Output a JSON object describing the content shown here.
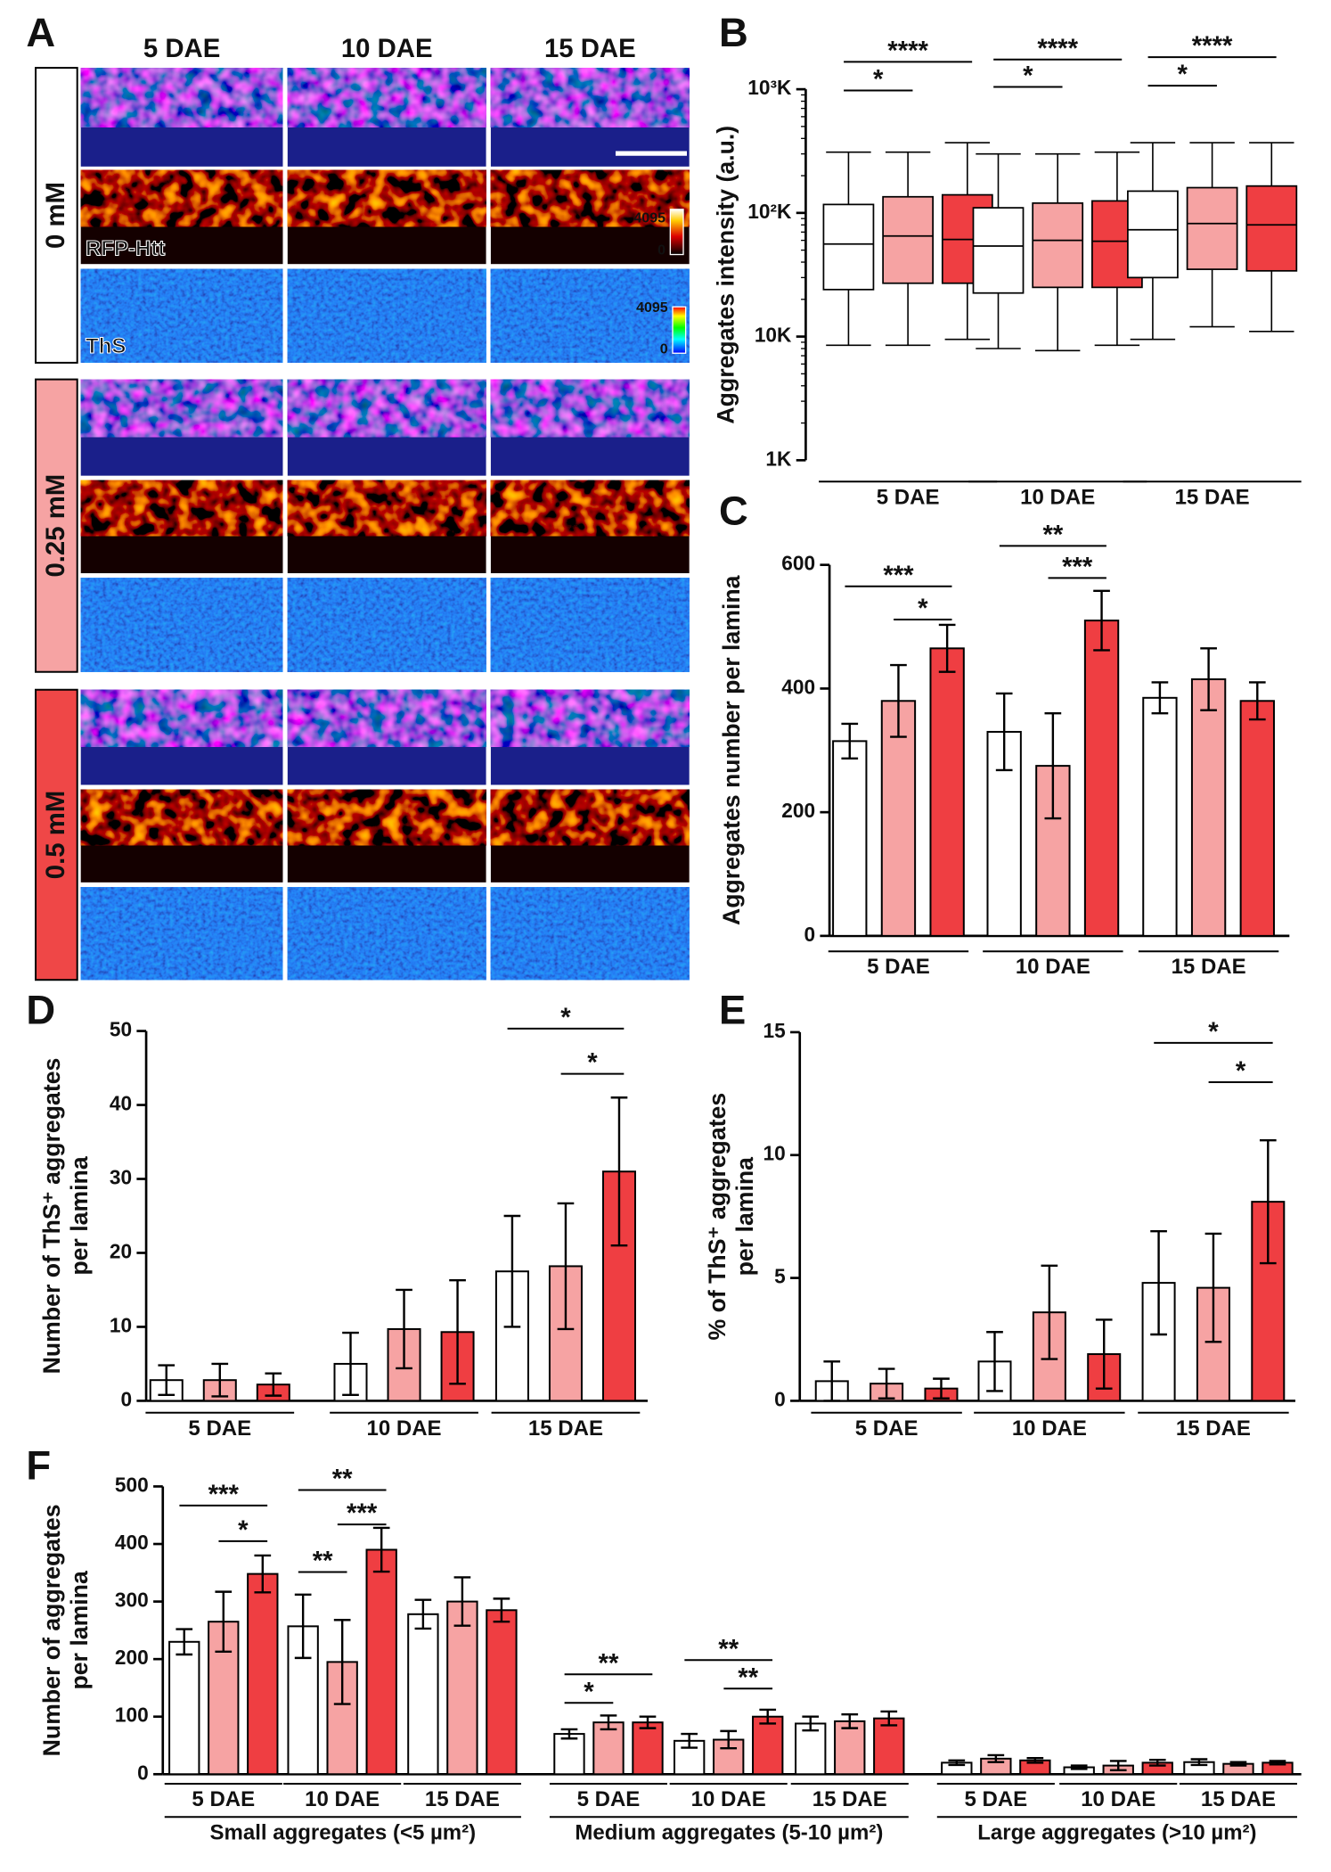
{
  "panel_a": {
    "letter": "A",
    "columns": [
      "5 DAE",
      "10 DAE",
      "15 DAE"
    ],
    "rows": [
      "0 mM",
      "0.25 mM",
      "0.5 mM"
    ],
    "channels": [
      "RFP-Htt",
      "ThS"
    ],
    "colorbar_max": "4095",
    "colorbar_min": "0"
  },
  "chart_data": [
    {
      "type": "box",
      "panel": "B",
      "ylabel": [
        "Aggregates intensity (a.u.)"
      ],
      "categories": [
        "5 DAE",
        "10 DAE",
        "15 DAE"
      ],
      "log_scale": true,
      "ylim": [
        1,
        1000
      ],
      "yticks": [
        {
          "value": 1,
          "label": "1K"
        },
        {
          "value": 10,
          "label": "10K"
        },
        {
          "value": 100,
          "label": "10²K"
        },
        {
          "value": 1000,
          "label": "10³K"
        }
      ],
      "series": [
        {
          "color": "#ffffff",
          "whislo": [
            8.5,
            8,
            9.5
          ],
          "q1": [
            24,
            22.5,
            30
          ],
          "median": [
            56,
            54,
            73
          ],
          "q3": [
            117,
            110,
            150
          ],
          "whishi": [
            310,
            300,
            370
          ]
        },
        {
          "color": "#f6a3a3",
          "whislo": [
            8.5,
            7.7,
            12
          ],
          "q1": [
            27,
            25,
            35
          ],
          "median": [
            65,
            60,
            82
          ],
          "q3": [
            135,
            120,
            160
          ],
          "whishi": [
            310,
            300,
            370
          ]
        },
        {
          "color": "#ef3e42",
          "whislo": [
            9.5,
            8.5,
            11
          ],
          "q1": [
            27,
            25,
            34
          ],
          "median": [
            61,
            59,
            80
          ],
          "q3": [
            140,
            125,
            165
          ],
          "whishi": [
            370,
            310,
            370
          ]
        }
      ],
      "annotations": [
        "****",
        "*",
        "****",
        "*",
        "****",
        "*"
      ]
    },
    {
      "type": "bar",
      "panel": "C",
      "ylabel": [
        "Aggregates number per lamina"
      ],
      "categories": [
        "5 DAE",
        "10 DAE",
        "15 DAE"
      ],
      "ylim": [
        0,
        600
      ],
      "yticks": [
        0,
        200,
        400,
        600
      ],
      "series": [
        {
          "color": "#ffffff",
          "values": [
            315,
            330,
            385
          ],
          "errors": [
            28,
            62,
            25
          ]
        },
        {
          "color": "#f6a3a3",
          "values": [
            380,
            275,
            415
          ],
          "errors": [
            58,
            85,
            50
          ]
        },
        {
          "color": "#ef3e42",
          "values": [
            465,
            510,
            380
          ],
          "errors": [
            38,
            48,
            30
          ]
        }
      ],
      "annotations": [
        "***",
        "*",
        "**",
        "***"
      ]
    },
    {
      "type": "bar",
      "panel": "D",
      "ylabel": [
        "Number of ThS⁺ aggregates",
        "per lamina"
      ],
      "categories": [
        "5 DAE",
        "10 DAE",
        "15 DAE"
      ],
      "ylim": [
        0,
        50
      ],
      "yticks": [
        0,
        10,
        20,
        30,
        40,
        50
      ],
      "series": [
        {
          "color": "#ffffff",
          "values": [
            2.8,
            5,
            17.5
          ],
          "errors": [
            2,
            4.2,
            7.5
          ]
        },
        {
          "color": "#f6a3a3",
          "values": [
            2.8,
            9.7,
            18.2
          ],
          "errors": [
            2.2,
            5.3,
            8.5
          ]
        },
        {
          "color": "#ef3e42",
          "values": [
            2.2,
            9.3,
            31
          ],
          "errors": [
            1.5,
            7,
            10
          ]
        }
      ],
      "annotations": [
        "*",
        "*"
      ]
    },
    {
      "type": "bar",
      "panel": "E",
      "ylabel": [
        "% of ThS⁺ aggregates",
        "per lamina"
      ],
      "categories": [
        "5 DAE",
        "10 DAE",
        "15 DAE"
      ],
      "ylim": [
        0,
        15
      ],
      "yticks": [
        0,
        5,
        10,
        15
      ],
      "series": [
        {
          "color": "#ffffff",
          "values": [
            0.8,
            1.6,
            4.8
          ],
          "errors": [
            0.8,
            1.2,
            2.1
          ]
        },
        {
          "color": "#f6a3a3",
          "values": [
            0.7,
            3.6,
            4.6
          ],
          "errors": [
            0.6,
            1.9,
            2.2
          ]
        },
        {
          "color": "#ef3e42",
          "values": [
            0.5,
            1.9,
            8.1
          ],
          "errors": [
            0.4,
            1.4,
            2.5
          ]
        }
      ],
      "annotations": [
        "*",
        "*"
      ]
    },
    {
      "type": "bar",
      "panel": "F",
      "ylabel": [
        "Number of aggregates",
        "per lamina"
      ],
      "categories": [
        "5 DAE",
        "10 DAE",
        "15 DAE",
        "5 DAE",
        "10 DAE",
        "15 DAE",
        "5 DAE",
        "10 DAE",
        "15 DAE"
      ],
      "groups": [
        "Small aggregates (<5 µm²)",
        "Medium aggregates (5-10 µm²)",
        "Large aggregates (>10 µm²)"
      ],
      "ylim": [
        0,
        500
      ],
      "yticks": [
        0,
        100,
        200,
        300,
        400,
        500
      ],
      "series": [
        {
          "color": "#ffffff",
          "values": [
            230,
            257,
            278,
            70,
            58,
            88,
            20,
            12,
            21
          ],
          "errors": [
            22,
            55,
            25,
            8,
            12,
            12,
            4,
            3,
            5
          ]
        },
        {
          "color": "#f6a3a3",
          "values": [
            265,
            195,
            300,
            90,
            60,
            92,
            27,
            15,
            18
          ],
          "errors": [
            52,
            73,
            42,
            12,
            15,
            12,
            6,
            8,
            3
          ]
        },
        {
          "color": "#ef3e42",
          "values": [
            348,
            390,
            285,
            90,
            100,
            97,
            24,
            20,
            20
          ],
          "errors": [
            32,
            38,
            20,
            10,
            12,
            12,
            4,
            5,
            3
          ]
        }
      ],
      "annotations": [
        "***",
        "*",
        "**",
        "***",
        "**",
        "**",
        "*",
        "**",
        "**"
      ]
    }
  ]
}
